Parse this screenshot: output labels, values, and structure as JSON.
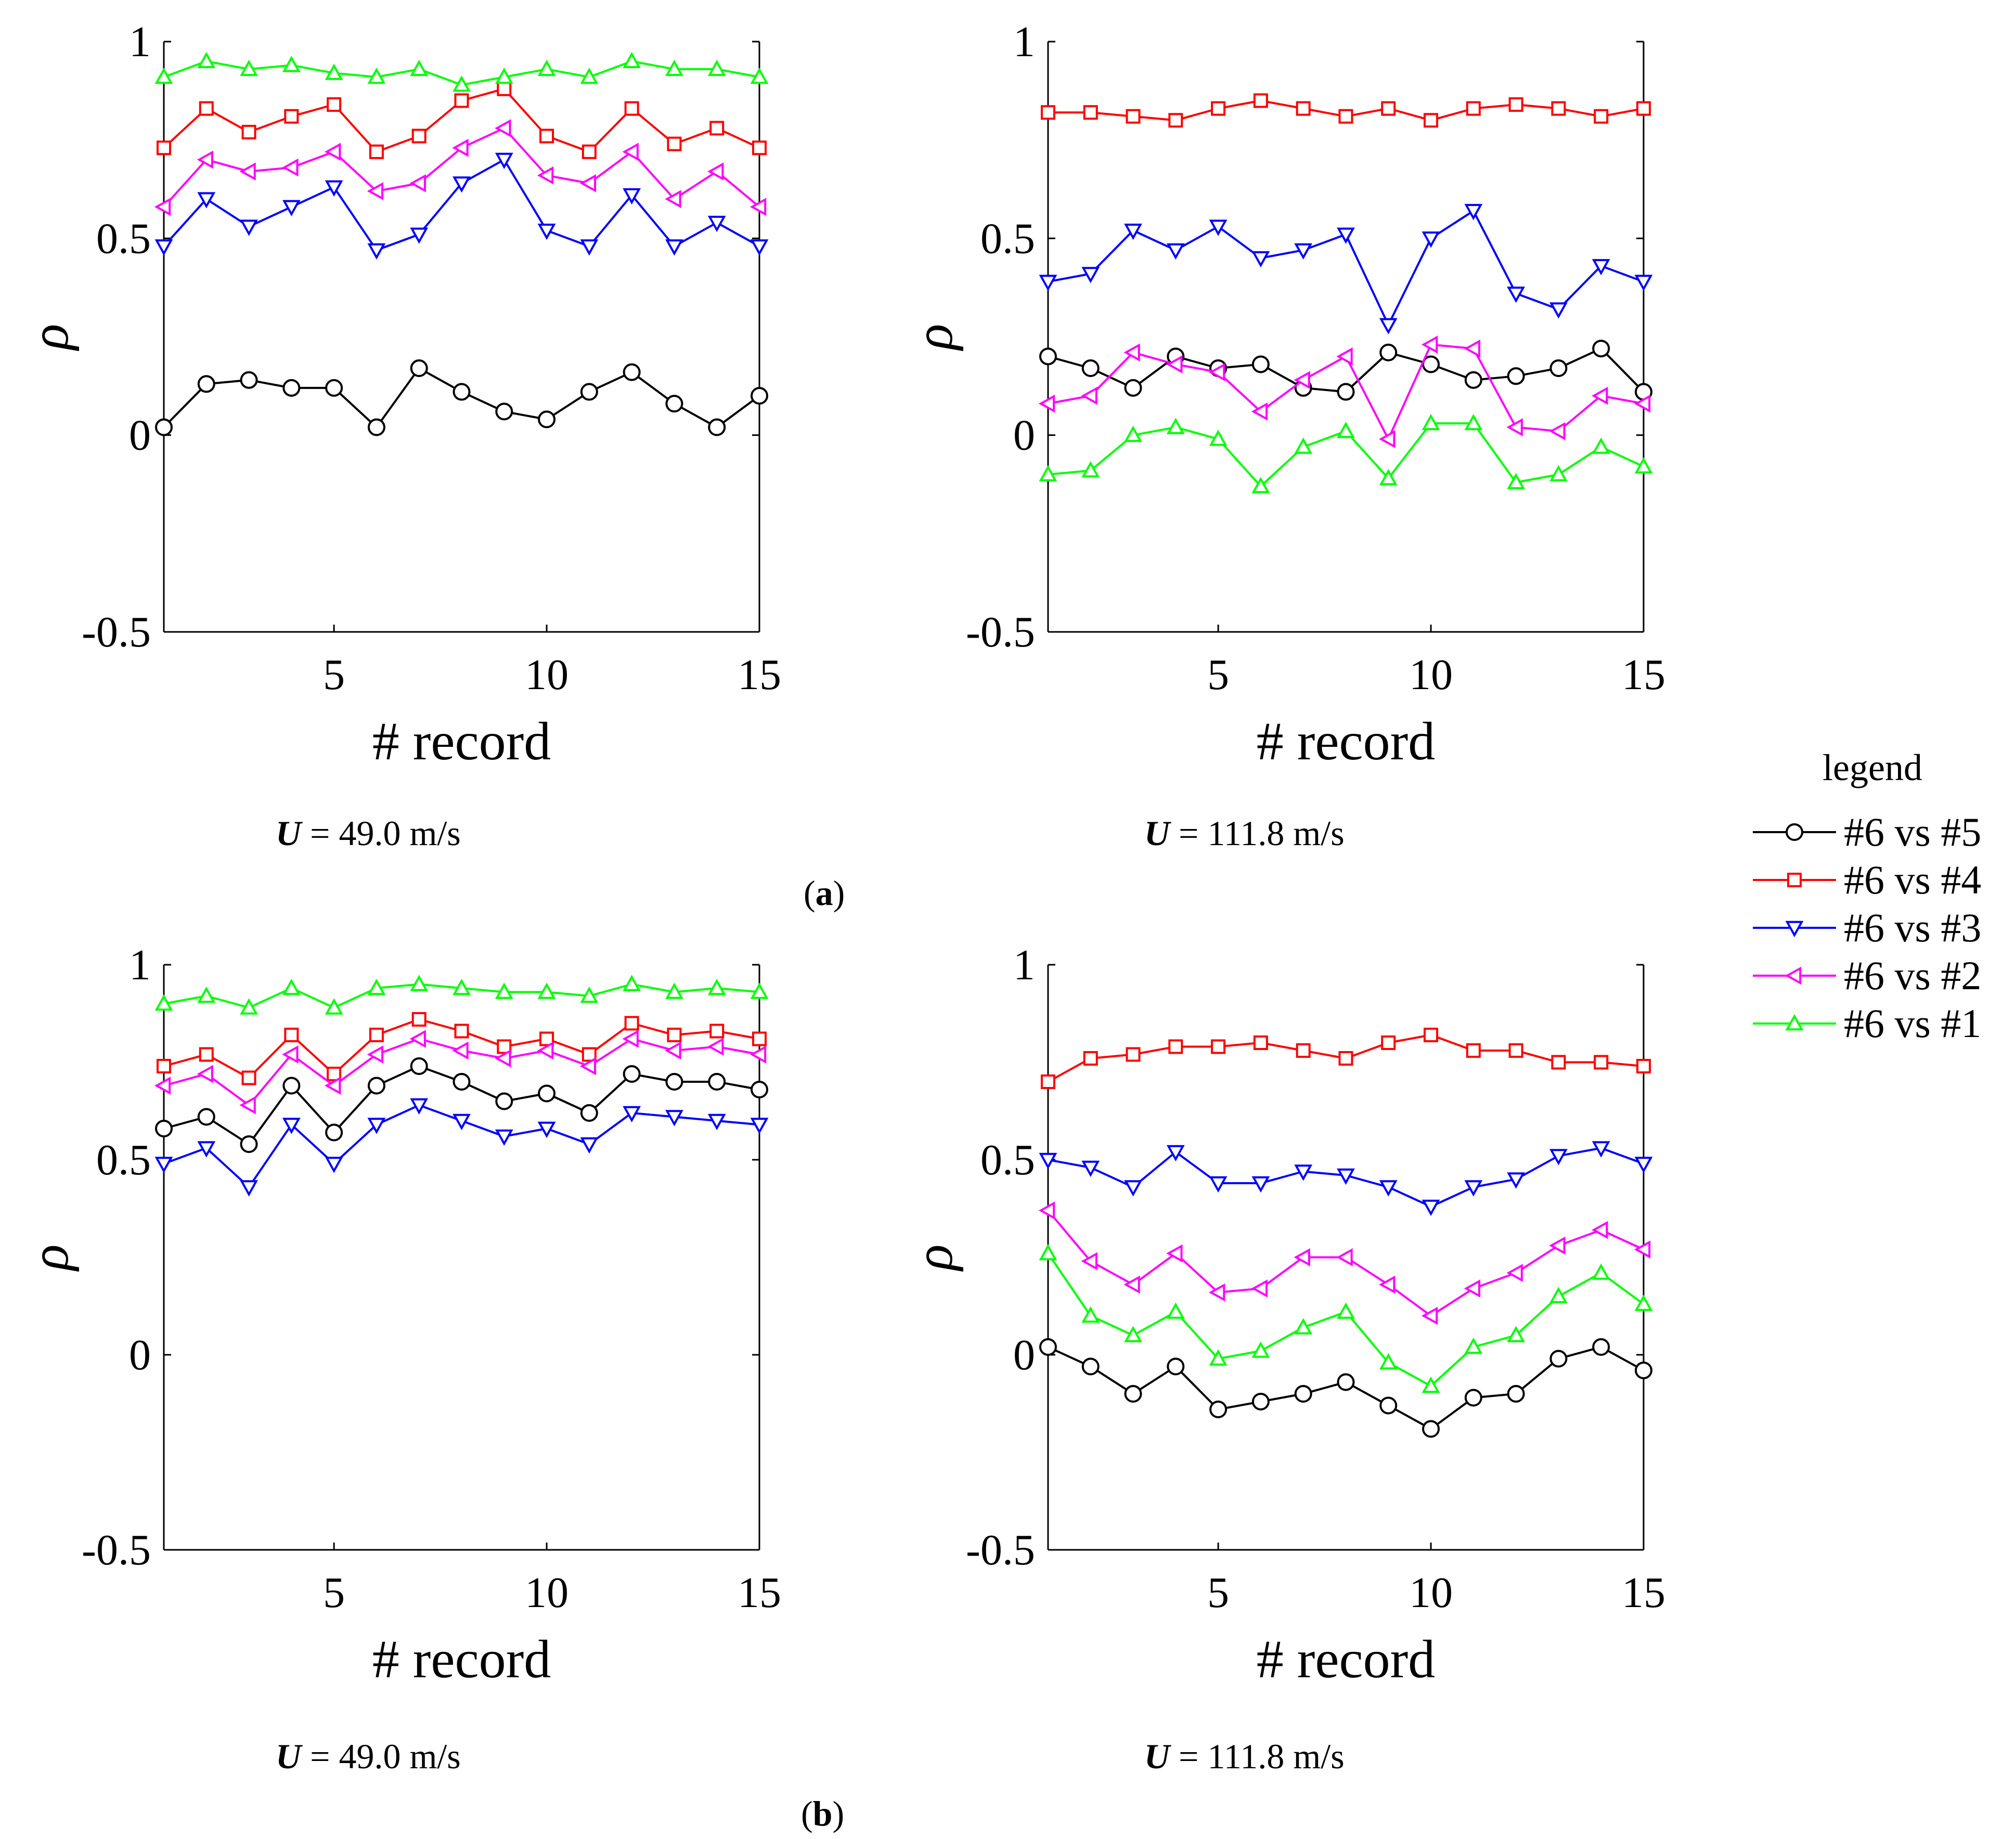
{
  "figure": {
    "legend_title": "legend",
    "panel_labels": [
      "a",
      "b"
    ],
    "velocity_symbol": "U",
    "velocity_suffixes": [
      "= 49.0 m/s",
      "= 111.8 m/s"
    ]
  },
  "chart_data": [
    {
      "id": "a-left",
      "type": "line",
      "caption": "U = 49.0 m/s",
      "xlabel": "# record",
      "ylabel": "ρ",
      "xlim": [
        1,
        15
      ],
      "ylim": [
        -0.5,
        1
      ],
      "xticks": [
        5,
        10,
        15
      ],
      "yticks": [
        -0.5,
        0,
        0.5,
        1
      ],
      "ytick_labels": [
        "-0.5",
        "0",
        "0.5",
        "1"
      ],
      "x": [
        1,
        2,
        3,
        4,
        5,
        6,
        7,
        8,
        9,
        10,
        11,
        12,
        13,
        14,
        15
      ],
      "series": [
        {
          "name": "#6 vs #5",
          "color": "#000000",
          "marker": "circle",
          "values": [
            0.02,
            0.13,
            0.14,
            0.12,
            0.12,
            0.02,
            0.17,
            0.11,
            0.06,
            0.04,
            0.11,
            0.16,
            0.08,
            0.02,
            0.1
          ]
        },
        {
          "name": "#6 vs #4",
          "color": "#ff0000",
          "marker": "square",
          "values": [
            0.73,
            0.83,
            0.77,
            0.81,
            0.84,
            0.72,
            0.76,
            0.85,
            0.88,
            0.76,
            0.72,
            0.83,
            0.74,
            0.78,
            0.73
          ]
        },
        {
          "name": "#6 vs #3",
          "color": "#0000ff",
          "marker": "triangle-down",
          "values": [
            0.48,
            0.6,
            0.53,
            0.58,
            0.63,
            0.47,
            0.51,
            0.64,
            0.7,
            0.52,
            0.48,
            0.61,
            0.48,
            0.54,
            0.48
          ]
        },
        {
          "name": "#6 vs #2",
          "color": "#ff00ff",
          "marker": "triangle-left",
          "values": [
            0.58,
            0.7,
            0.67,
            0.68,
            0.72,
            0.62,
            0.64,
            0.73,
            0.78,
            0.66,
            0.64,
            0.72,
            0.6,
            0.67,
            0.58
          ]
        },
        {
          "name": "#6 vs #1",
          "color": "#00ff00",
          "marker": "triangle-up",
          "values": [
            0.91,
            0.95,
            0.93,
            0.94,
            0.92,
            0.91,
            0.93,
            0.89,
            0.91,
            0.93,
            0.91,
            0.95,
            0.93,
            0.93,
            0.91
          ]
        }
      ]
    },
    {
      "id": "a-right",
      "type": "line",
      "caption": "U = 111.8 m/s",
      "xlabel": "# record",
      "ylabel": "ρ",
      "xlim": [
        1,
        15
      ],
      "ylim": [
        -0.5,
        1
      ],
      "xticks": [
        5,
        10,
        15
      ],
      "yticks": [
        -0.5,
        0,
        0.5,
        1
      ],
      "ytick_labels": [
        "-0.5",
        "0",
        "0.5",
        "1"
      ],
      "x": [
        1,
        2,
        3,
        4,
        5,
        6,
        7,
        8,
        9,
        10,
        11,
        12,
        13,
        14,
        15
      ],
      "series": [
        {
          "name": "#6 vs #5",
          "color": "#000000",
          "marker": "circle",
          "values": [
            0.2,
            0.17,
            0.12,
            0.2,
            0.17,
            0.18,
            0.12,
            0.11,
            0.21,
            0.18,
            0.14,
            0.15,
            0.17,
            0.22,
            0.11
          ]
        },
        {
          "name": "#6 vs #4",
          "color": "#ff0000",
          "marker": "square",
          "values": [
            0.82,
            0.82,
            0.81,
            0.8,
            0.83,
            0.85,
            0.83,
            0.81,
            0.83,
            0.8,
            0.83,
            0.84,
            0.83,
            0.81,
            0.83
          ]
        },
        {
          "name": "#6 vs #3",
          "color": "#0000ff",
          "marker": "triangle-down",
          "values": [
            0.39,
            0.41,
            0.52,
            0.47,
            0.53,
            0.45,
            0.47,
            0.51,
            0.28,
            0.5,
            0.57,
            0.36,
            0.32,
            0.43,
            0.39
          ]
        },
        {
          "name": "#6 vs #2",
          "color": "#ff00ff",
          "marker": "triangle-left",
          "values": [
            0.08,
            0.1,
            0.21,
            0.18,
            0.16,
            0.06,
            0.14,
            0.2,
            -0.01,
            0.23,
            0.22,
            0.02,
            0.01,
            0.1,
            0.08
          ]
        },
        {
          "name": "#6 vs #1",
          "color": "#00ff00",
          "marker": "triangle-up",
          "values": [
            -0.1,
            -0.09,
            0.0,
            0.02,
            -0.01,
            -0.13,
            -0.03,
            0.01,
            -0.11,
            0.03,
            0.03,
            -0.12,
            -0.1,
            -0.03,
            -0.08
          ]
        }
      ]
    },
    {
      "id": "b-left",
      "type": "line",
      "caption": "U = 49.0 m/s",
      "xlabel": "# record",
      "ylabel": "ρ",
      "xlim": [
        1,
        15
      ],
      "ylim": [
        -0.5,
        1
      ],
      "xticks": [
        5,
        10,
        15
      ],
      "yticks": [
        -0.5,
        0,
        0.5,
        1
      ],
      "ytick_labels": [
        "-0.5",
        "0",
        "0.5",
        "1"
      ],
      "x": [
        1,
        2,
        3,
        4,
        5,
        6,
        7,
        8,
        9,
        10,
        11,
        12,
        13,
        14,
        15
      ],
      "series": [
        {
          "name": "#6 vs #5",
          "color": "#000000",
          "marker": "circle",
          "values": [
            0.58,
            0.61,
            0.54,
            0.69,
            0.57,
            0.69,
            0.74,
            0.7,
            0.65,
            0.67,
            0.62,
            0.72,
            0.7,
            0.7,
            0.68
          ]
        },
        {
          "name": "#6 vs #4",
          "color": "#ff0000",
          "marker": "square",
          "values": [
            0.74,
            0.77,
            0.71,
            0.82,
            0.72,
            0.82,
            0.86,
            0.83,
            0.79,
            0.81,
            0.77,
            0.85,
            0.82,
            0.83,
            0.81
          ]
        },
        {
          "name": "#6 vs #3",
          "color": "#0000ff",
          "marker": "triangle-down",
          "values": [
            0.49,
            0.53,
            0.43,
            0.59,
            0.49,
            0.59,
            0.64,
            0.6,
            0.56,
            0.58,
            0.54,
            0.62,
            0.61,
            0.6,
            0.59
          ]
        },
        {
          "name": "#6 vs #2",
          "color": "#ff00ff",
          "marker": "triangle-left",
          "values": [
            0.69,
            0.72,
            0.64,
            0.77,
            0.69,
            0.77,
            0.81,
            0.78,
            0.76,
            0.78,
            0.74,
            0.81,
            0.78,
            0.79,
            0.77
          ]
        },
        {
          "name": "#6 vs #1",
          "color": "#00ff00",
          "marker": "triangle-up",
          "values": [
            0.9,
            0.92,
            0.89,
            0.94,
            0.89,
            0.94,
            0.95,
            0.94,
            0.93,
            0.93,
            0.92,
            0.95,
            0.93,
            0.94,
            0.93
          ]
        }
      ]
    },
    {
      "id": "b-right",
      "type": "line",
      "caption": "U = 111.8 m/s",
      "xlabel": "# record",
      "ylabel": "ρ",
      "xlim": [
        1,
        15
      ],
      "ylim": [
        -0.5,
        1
      ],
      "xticks": [
        5,
        10,
        15
      ],
      "yticks": [
        -0.5,
        0,
        0.5,
        1
      ],
      "ytick_labels": [
        "-0.5",
        "0",
        "0.5",
        "1"
      ],
      "x": [
        1,
        2,
        3,
        4,
        5,
        6,
        7,
        8,
        9,
        10,
        11,
        12,
        13,
        14,
        15
      ],
      "series": [
        {
          "name": "#6 vs #5",
          "color": "#000000",
          "marker": "circle",
          "values": [
            0.02,
            -0.03,
            -0.1,
            -0.03,
            -0.14,
            -0.12,
            -0.1,
            -0.07,
            -0.13,
            -0.19,
            -0.11,
            -0.1,
            -0.01,
            0.02,
            -0.04
          ]
        },
        {
          "name": "#6 vs #4",
          "color": "#ff0000",
          "marker": "square",
          "values": [
            0.7,
            0.76,
            0.77,
            0.79,
            0.79,
            0.8,
            0.78,
            0.76,
            0.8,
            0.82,
            0.78,
            0.78,
            0.75,
            0.75,
            0.74
          ]
        },
        {
          "name": "#6 vs #3",
          "color": "#0000ff",
          "marker": "triangle-down",
          "values": [
            0.5,
            0.48,
            0.43,
            0.52,
            0.44,
            0.44,
            0.47,
            0.46,
            0.43,
            0.38,
            0.43,
            0.45,
            0.51,
            0.53,
            0.49
          ]
        },
        {
          "name": "#6 vs #2",
          "color": "#ff00ff",
          "marker": "triangle-left",
          "values": [
            0.37,
            0.24,
            0.18,
            0.26,
            0.16,
            0.17,
            0.25,
            0.25,
            0.18,
            0.1,
            0.17,
            0.21,
            0.28,
            0.32,
            0.27
          ]
        },
        {
          "name": "#6 vs #1",
          "color": "#00ff00",
          "marker": "triangle-up",
          "values": [
            0.26,
            0.1,
            0.05,
            0.11,
            -0.01,
            0.01,
            0.07,
            0.11,
            -0.02,
            -0.08,
            0.02,
            0.05,
            0.15,
            0.21,
            0.13
          ]
        }
      ]
    }
  ]
}
